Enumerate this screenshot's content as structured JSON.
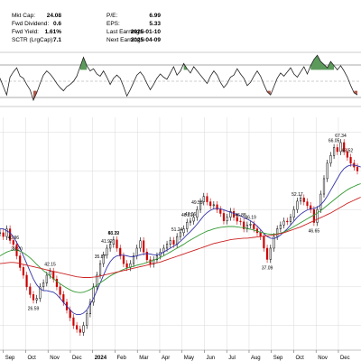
{
  "colors": {
    "price_up": "#000000",
    "price_down": "#cc0000",
    "sma_blue": "#3333aa",
    "sma_green": "#339933",
    "sma_red": "#cc2222",
    "osc_line": "#222222",
    "osc_fill_up": "#5c9a5c",
    "osc_fill_down": "#b35a4a",
    "grid": "#d9d9d9"
  },
  "info": {
    "left_labels": [
      "Mkt Cap:",
      "Fwd Dividend:",
      "Fwd Yield:",
      "SCTR (LrgCap):"
    ],
    "left_values": [
      "24.08",
      "0.6",
      "1.61%",
      "7.1"
    ],
    "right_labels": [
      "P/E:",
      "EPS:",
      "Last Earnings:",
      "Next Earnings:"
    ],
    "right_values": [
      "6.99",
      "5.33",
      "2025-01-10",
      "2025-04-09"
    ]
  },
  "chart_data": {
    "type": "line",
    "x_axis_labels": [
      "Sep",
      "Oct",
      "Nov",
      "Dec",
      "2024",
      "Feb",
      "Mar",
      "Apr",
      "May",
      "Jun",
      "Jul",
      "Aug",
      "Sep",
      "Oct",
      "Nov",
      "Dec"
    ],
    "price_annotations": [
      "40.96",
      "26.59",
      "38.20",
      "42.15",
      "41.92",
      "35.87",
      "46.72",
      "53.39",
      "51.24",
      "47.06",
      "49.53",
      "46.81",
      "46.19",
      "46.88",
      "37.09",
      "52.17",
      "46.65",
      "66.05",
      "67.34",
      "63.52"
    ],
    "series": [
      {
        "values": [
          44,
          43,
          45,
          42,
          40.96,
          38,
          35,
          33,
          30,
          28,
          26.59,
          27,
          30,
          31,
          33,
          34,
          32,
          30,
          28,
          26,
          24,
          22,
          20,
          19,
          18.2,
          20,
          23,
          26,
          30,
          33,
          36,
          38.2,
          40,
          41,
          42.15,
          40,
          38,
          36,
          35,
          36,
          38,
          40,
          41.92,
          39,
          37,
          35.87,
          37,
          38,
          39,
          40,
          41,
          42,
          41,
          43,
          44,
          45,
          46.72,
          47,
          48,
          50,
          52,
          53.39,
          52,
          51,
          51.24,
          50,
          49,
          47.06,
          48,
          49.53,
          48,
          47,
          46.81,
          45,
          46,
          46.19,
          45,
          44,
          43,
          40,
          37.09,
          40,
          43,
          45,
          46,
          47,
          46.88,
          48,
          50,
          52.17,
          53,
          52,
          51,
          50,
          46.65,
          50,
          54,
          58,
          62,
          64,
          66.05,
          65,
          67.34,
          65,
          63.52,
          62,
          61,
          60
        ]
      },
      {
        "values": [
          45,
          45,
          44.5,
          44,
          43,
          41.5,
          40,
          38,
          36,
          34,
          32,
          30.5,
          29.5,
          29,
          29,
          28.8,
          28.6,
          28,
          27,
          26,
          25,
          24,
          23.2,
          22.8,
          22.8,
          23.2,
          24,
          25.5,
          27,
          29,
          31,
          33,
          35,
          36.5,
          37.5,
          38,
          38.2,
          38.2,
          38,
          37.8,
          37.8,
          38,
          38.3,
          38.5,
          38.6,
          38.5,
          38.3,
          38.3,
          38.5,
          39,
          39.5,
          40,
          40.5,
          41,
          41.8,
          42.6,
          43.5,
          44.3,
          45.2,
          46.2,
          47.3,
          48.4,
          49.2,
          49.8,
          50.2,
          50.3,
          50.2,
          49.9,
          49.6,
          49.3,
          49,
          48.7,
          48.4,
          47.9,
          47.5,
          47.1,
          46.5,
          45.7,
          44.8,
          43.8,
          43,
          42.6,
          42.5,
          42.8,
          43.4,
          44.2,
          45,
          46,
          47,
          48,
          48.8,
          49.4,
          49.9,
          50.2,
          50.3,
          50.6,
          51.2,
          52.2,
          53.5,
          55,
          56.5,
          58,
          59.5,
          60.6,
          61.2,
          61.5,
          61.5,
          61.3,
          61
        ]
      },
      {
        "values": [
          38,
          38.5,
          39,
          39.3,
          39.5,
          39.5,
          39.2,
          38.8,
          38.2,
          37.5,
          36.7,
          35.8,
          35,
          34.2,
          33.5,
          32.8,
          32.1,
          31.4,
          30.8,
          30.2,
          29.7,
          29.2,
          28.8,
          28.6,
          28.5,
          28.6,
          28.9,
          29.3,
          29.8,
          30.4,
          31,
          31.6,
          32.2,
          32.8,
          33.3,
          33.7,
          34.1,
          34.5,
          34.8,
          35.1,
          35.3,
          35.6,
          35.8,
          36,
          36.3,
          36.6,
          36.9,
          37.2,
          37.6,
          38,
          38.5,
          39,
          39.5,
          40,
          40.5,
          41,
          41.6,
          42.1,
          42.6,
          43.1,
          43.6,
          44,
          44.4,
          44.7,
          45,
          45.2,
          45.4,
          45.5,
          45.6,
          45.6,
          45.6,
          45.5,
          45.4,
          45.3,
          45.1,
          44.9,
          44.7,
          44.4,
          44.1,
          43.9,
          43.7,
          43.6,
          43.6,
          43.7,
          43.9,
          44.2,
          44.6,
          45.1,
          45.6,
          46.1,
          46.6,
          47.1,
          47.6,
          48.1,
          48.6,
          49.1,
          49.7,
          50.4,
          51.1,
          51.8,
          52.5,
          53.2,
          53.9,
          54.5,
          55.1,
          55.6,
          56,
          56.4,
          56.7
        ]
      },
      {
        "values": [
          36,
          36.1,
          36.2,
          36.3,
          36.3,
          36.2,
          36,
          35.8,
          35.6,
          35.4,
          35.2,
          35,
          34.8,
          34.6,
          34.4,
          34.2,
          34,
          33.8,
          33.6,
          33.4,
          33.2,
          33,
          32.8,
          32.6,
          32.5,
          32.4,
          32.4,
          32.4,
          32.5,
          32.6,
          32.8,
          33,
          33.2,
          33.4,
          33.6,
          33.8,
          34,
          34.2,
          34.4,
          34.6,
          34.8,
          35,
          35.2,
          35.4,
          35.6,
          35.8,
          36,
          36.2,
          36.4,
          36.7,
          37,
          37.3,
          37.6,
          37.9,
          38.2,
          38.5,
          38.8,
          39.1,
          39.4,
          39.7,
          40,
          40.3,
          40.6,
          40.9,
          41.2,
          41.4,
          41.6,
          41.8,
          42,
          42.2,
          42.3,
          42.4,
          42.5,
          42.6,
          42.6,
          42.7,
          42.8,
          42.9,
          43,
          43.1,
          43.2,
          43.3,
          43.4,
          43.6,
          43.8,
          44,
          44.3,
          44.6,
          44.9,
          45.2,
          45.5,
          45.9,
          46.3,
          46.7,
          47.1,
          47.5,
          47.9,
          48.3,
          48.7,
          49.1,
          49.6,
          50.1,
          50.6,
          51.1,
          51.6,
          52,
          52.4,
          52.8,
          53.2
        ]
      }
    ],
    "oscillator": {
      "values": [
        0.2,
        -0.6,
        -1.4,
        0.3,
        0.8,
        1.2,
        0.4,
        0.2,
        -0.4,
        -0.9,
        -1.9,
        -1.2,
        -0.3,
        0.5,
        0.9,
        0.6,
        0.2,
        -0.3,
        -0.7,
        -1.0,
        -0.6,
        -0.4,
        -0.1,
        0.4,
        1.3,
        2.2,
        1.4,
        0.9,
        1.1,
        0.6,
        0.4,
        0.9,
        0.3,
        -0.4,
        0.2,
        0.5,
        0.2,
        -0.6,
        -1.5,
        -0.9,
        -0.2,
        0.5,
        0.8,
        0.4,
        -0.3,
        -0.9,
        -0.4,
        0.2,
        0.6,
        0.3,
        0.1,
        0.7,
        1.3,
        0.5,
        0.9,
        1.6,
        1.1,
        0.7,
        1.3,
        0.9,
        0.5,
        0.1,
        -0.3,
        0.4,
        0.9,
        0.5,
        -0.2,
        -0.7,
        -0.3,
        0.3,
        0.5,
        1.1,
        0.6,
        0.2,
        -0.5,
        -0.2,
        0.4,
        0.9,
        0.4,
        -0.4,
        -1.1,
        -1.4,
        -0.6,
        0.2,
        0.7,
        0.4,
        0.8,
        1.2,
        0.6,
        0.3,
        0.8,
        1.3,
        0.6,
        1.4,
        2.0,
        2.4,
        1.8,
        1.5,
        1.2,
        1.8,
        1.4,
        1.0,
        1.4,
        0.9,
        0.3,
        -0.5,
        -1.2,
        -1.4
      ]
    },
    "ylim": [
      15,
      72
    ],
    "oscillator_ylim": [
      -2.5,
      2.5
    ],
    "legend": "none",
    "grid": true
  }
}
